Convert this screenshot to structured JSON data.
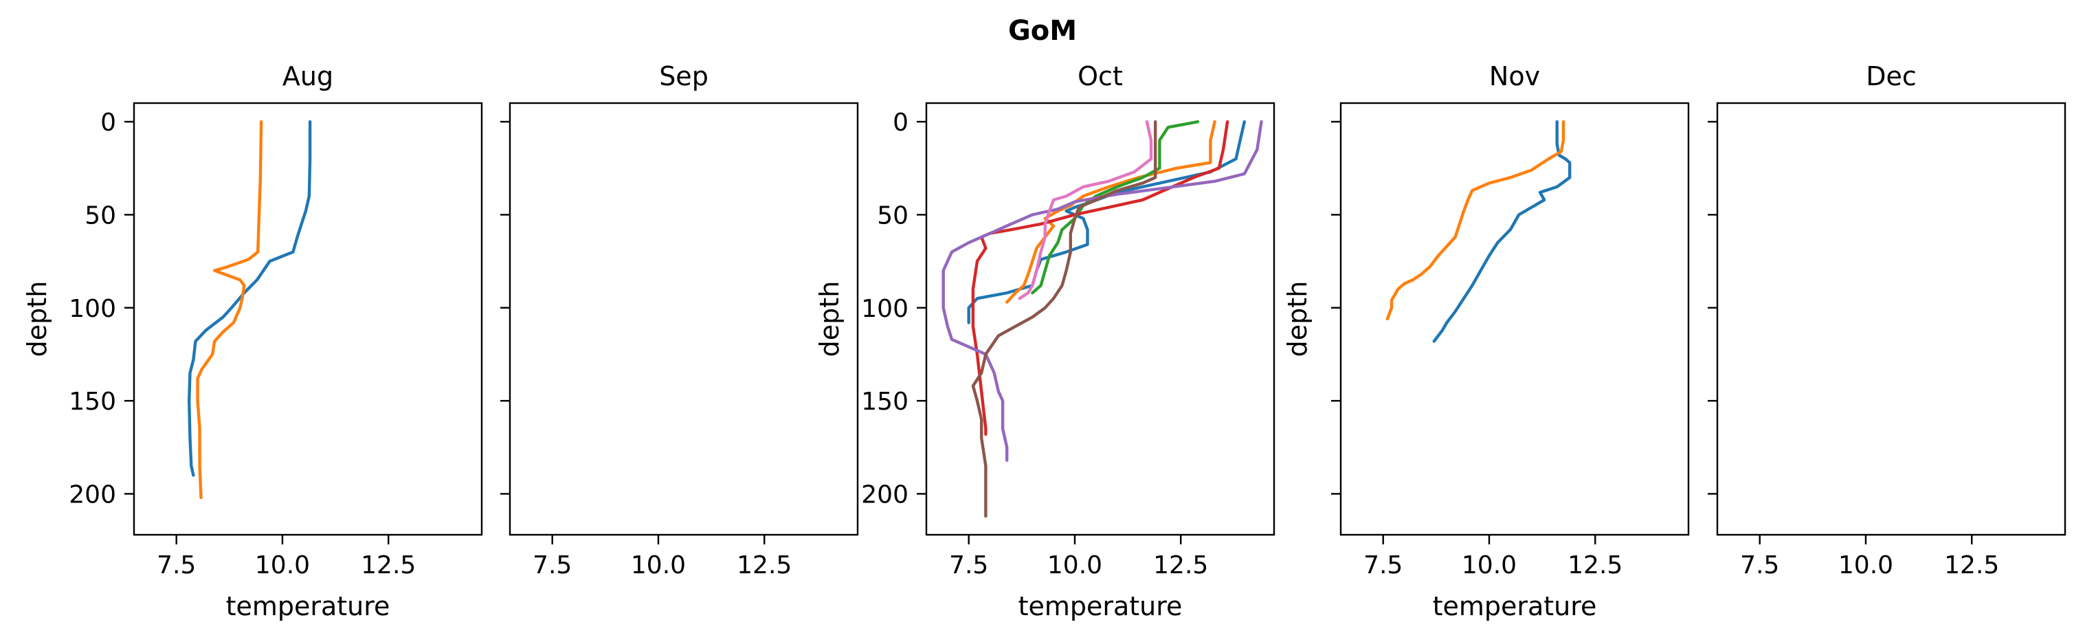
{
  "chart_data": {
    "title": "GoM",
    "type": "line",
    "xlim": [
      6.5,
      14.7
    ],
    "ylim": [
      222,
      -10
    ],
    "y_inverted": true,
    "x_ticks": [
      7.5,
      10.0,
      12.5
    ],
    "x_tick_labels": [
      "7.5",
      "10.0",
      "12.5"
    ],
    "y_ticks": [
      0,
      50,
      100,
      150,
      200
    ],
    "y_tick_labels": [
      "0",
      "50",
      "100",
      "150",
      "200"
    ],
    "xlabel": "temperature",
    "ylabel": "depth",
    "grid": false,
    "colors": [
      "#1f77b4",
      "#ff7f0e",
      "#2ca02c",
      "#d62728",
      "#9467bd",
      "#8c564b",
      "#e377c2"
    ],
    "panels": [
      {
        "title": "Aug",
        "show_xlabel": true,
        "show_ylabel": true,
        "show_ytick_labels": true,
        "series": [
          {
            "color": "#1f77b4",
            "points": [
              [
                10.65,
                0
              ],
              [
                10.65,
                20
              ],
              [
                10.63,
                40
              ],
              [
                10.55,
                48
              ],
              [
                10.45,
                55
              ],
              [
                10.35,
                62
              ],
              [
                10.25,
                70
              ],
              [
                9.7,
                75
              ],
              [
                9.4,
                85
              ],
              [
                9.1,
                92
              ],
              [
                8.8,
                100
              ],
              [
                8.6,
                105
              ],
              [
                8.2,
                112
              ],
              [
                7.95,
                118
              ],
              [
                7.9,
                128
              ],
              [
                7.82,
                135
              ],
              [
                7.8,
                150
              ],
              [
                7.82,
                170
              ],
              [
                7.85,
                185
              ],
              [
                7.9,
                190
              ]
            ]
          },
          {
            "color": "#ff7f0e",
            "points": [
              [
                9.5,
                0
              ],
              [
                9.48,
                30
              ],
              [
                9.45,
                50
              ],
              [
                9.42,
                70
              ],
              [
                9.2,
                74
              ],
              [
                8.7,
                78
              ],
              [
                8.4,
                80
              ],
              [
                9.0,
                85
              ],
              [
                9.1,
                88
              ],
              [
                9.05,
                95
              ],
              [
                9.0,
                100
              ],
              [
                8.85,
                108
              ],
              [
                8.6,
                113
              ],
              [
                8.4,
                118
              ],
              [
                8.35,
                125
              ],
              [
                8.1,
                133
              ],
              [
                8.0,
                138
              ],
              [
                8.0,
                150
              ],
              [
                8.05,
                165
              ],
              [
                8.05,
                185
              ],
              [
                8.08,
                202
              ]
            ]
          }
        ]
      },
      {
        "title": "Sep",
        "show_xlabel": false,
        "show_ylabel": false,
        "show_ytick_labels": false,
        "series": []
      },
      {
        "title": "Oct",
        "show_xlabel": true,
        "show_ylabel": true,
        "show_ytick_labels": true,
        "series": [
          {
            "color": "#1f77b4",
            "points": [
              [
                14.0,
                0
              ],
              [
                13.9,
                10
              ],
              [
                13.8,
                20
              ],
              [
                13.2,
                27
              ],
              [
                12.0,
                33
              ],
              [
                11.0,
                38
              ],
              [
                10.4,
                43
              ],
              [
                10.0,
                46
              ],
              [
                9.8,
                48
              ],
              [
                10.2,
                52
              ],
              [
                10.3,
                58
              ],
              [
                10.3,
                66
              ],
              [
                9.8,
                70
              ],
              [
                9.2,
                74
              ],
              [
                9.1,
                80
              ],
              [
                9.0,
                88
              ],
              [
                8.4,
                92
              ],
              [
                7.7,
                95
              ],
              [
                7.5,
                100
              ],
              [
                7.5,
                108
              ]
            ]
          },
          {
            "color": "#ff7f0e",
            "points": [
              [
                13.3,
                0
              ],
              [
                13.2,
                10
              ],
              [
                13.2,
                22
              ],
              [
                12.4,
                25
              ],
              [
                11.5,
                30
              ],
              [
                10.8,
                35
              ],
              [
                10.2,
                40
              ],
              [
                9.9,
                45
              ],
              [
                9.6,
                48
              ],
              [
                9.3,
                52
              ],
              [
                9.5,
                56
              ],
              [
                9.3,
                62
              ],
              [
                9.1,
                68
              ],
              [
                9.0,
                75
              ],
              [
                8.9,
                82
              ],
              [
                8.8,
                88
              ],
              [
                8.6,
                92
              ],
              [
                8.4,
                97
              ]
            ]
          },
          {
            "color": "#2ca02c",
            "points": [
              [
                12.9,
                0
              ],
              [
                12.2,
                3
              ],
              [
                12.0,
                10
              ],
              [
                12.0,
                25
              ],
              [
                11.6,
                30
              ],
              [
                11.0,
                35
              ],
              [
                10.5,
                40
              ],
              [
                10.2,
                45
              ],
              [
                10.0,
                52
              ],
              [
                9.7,
                58
              ],
              [
                9.6,
                65
              ],
              [
                9.4,
                72
              ],
              [
                9.3,
                80
              ],
              [
                9.2,
                88
              ],
              [
                9.0,
                92
              ]
            ]
          },
          {
            "color": "#d62728",
            "points": [
              [
                13.6,
                0
              ],
              [
                13.5,
                15
              ],
              [
                13.4,
                25
              ],
              [
                12.8,
                30
              ],
              [
                12.0,
                38
              ],
              [
                11.6,
                42
              ],
              [
                10.8,
                46
              ],
              [
                10.0,
                50
              ],
              [
                9.2,
                55
              ],
              [
                8.5,
                58
              ],
              [
                8.0,
                60
              ],
              [
                7.8,
                62
              ],
              [
                7.9,
                68
              ],
              [
                7.7,
                75
              ],
              [
                7.6,
                90
              ],
              [
                7.6,
                110
              ],
              [
                7.7,
                125
              ],
              [
                7.8,
                145
              ],
              [
                7.9,
                165
              ],
              [
                7.9,
                168
              ]
            ]
          },
          {
            "color": "#9467bd",
            "points": [
              [
                14.4,
                0
              ],
              [
                14.3,
                15
              ],
              [
                14.0,
                28
              ],
              [
                13.3,
                32
              ],
              [
                12.0,
                36
              ],
              [
                11.0,
                39
              ],
              [
                10.0,
                43
              ],
              [
                9.6,
                47
              ],
              [
                9.0,
                50
              ],
              [
                8.5,
                55
              ],
              [
                8.0,
                60
              ],
              [
                7.5,
                65
              ],
              [
                7.1,
                70
              ],
              [
                6.9,
                80
              ],
              [
                6.9,
                90
              ],
              [
                6.9,
                100
              ],
              [
                7.0,
                110
              ],
              [
                7.1,
                117
              ],
              [
                7.4,
                120
              ],
              [
                7.9,
                125
              ],
              [
                8.1,
                135
              ],
              [
                8.2,
                145
              ],
              [
                8.3,
                150
              ],
              [
                8.3,
                165
              ],
              [
                8.4,
                175
              ],
              [
                8.4,
                182
              ]
            ]
          },
          {
            "color": "#8c564b",
            "points": [
              [
                11.9,
                0
              ],
              [
                11.9,
                20
              ],
              [
                11.9,
                30
              ],
              [
                11.6,
                33
              ],
              [
                11.0,
                37
              ],
              [
                10.5,
                42
              ],
              [
                10.1,
                46
              ],
              [
                10.0,
                52
              ],
              [
                9.9,
                60
              ],
              [
                9.9,
                70
              ],
              [
                9.8,
                80
              ],
              [
                9.7,
                88
              ],
              [
                9.5,
                95
              ],
              [
                9.3,
                100
              ],
              [
                9.0,
                105
              ],
              [
                8.6,
                110
              ],
              [
                8.2,
                115
              ],
              [
                7.9,
                125
              ],
              [
                7.8,
                135
              ],
              [
                7.6,
                142
              ],
              [
                7.7,
                150
              ],
              [
                7.8,
                160
              ],
              [
                7.8,
                170
              ],
              [
                7.9,
                185
              ],
              [
                7.9,
                200
              ],
              [
                7.9,
                212
              ]
            ]
          },
          {
            "color": "#e377c2",
            "points": [
              [
                11.7,
                0
              ],
              [
                11.8,
                10
              ],
              [
                11.8,
                20
              ],
              [
                11.4,
                27
              ],
              [
                10.8,
                32
              ],
              [
                10.2,
                35
              ],
              [
                9.8,
                40
              ],
              [
                9.5,
                42
              ],
              [
                9.4,
                48
              ],
              [
                9.3,
                55
              ],
              [
                9.3,
                62
              ],
              [
                9.2,
                70
              ],
              [
                9.1,
                80
              ],
              [
                9.0,
                88
              ],
              [
                8.9,
                92
              ],
              [
                8.7,
                95
              ]
            ]
          }
        ]
      },
      {
        "title": "Nov",
        "show_xlabel": true,
        "show_ylabel": true,
        "show_ytick_labels": false,
        "series": [
          {
            "color": "#1f77b4",
            "points": [
              [
                11.6,
                0
              ],
              [
                11.6,
                12
              ],
              [
                11.65,
                18
              ],
              [
                11.8,
                20
              ],
              [
                11.9,
                22
              ],
              [
                11.9,
                30
              ],
              [
                11.6,
                35
              ],
              [
                11.2,
                38
              ],
              [
                11.3,
                42
              ],
              [
                11.0,
                46
              ],
              [
                10.7,
                50
              ],
              [
                10.5,
                58
              ],
              [
                10.2,
                65
              ],
              [
                10.0,
                72
              ],
              [
                9.8,
                80
              ],
              [
                9.6,
                88
              ],
              [
                9.4,
                95
              ],
              [
                9.2,
                102
              ],
              [
                9.0,
                108
              ],
              [
                8.9,
                112
              ],
              [
                8.8,
                115
              ],
              [
                8.7,
                118
              ]
            ]
          },
          {
            "color": "#ff7f0e",
            "points": [
              [
                11.75,
                0
              ],
              [
                11.75,
                10
              ],
              [
                11.7,
                16
              ],
              [
                11.4,
                20
              ],
              [
                11.0,
                26
              ],
              [
                10.5,
                30
              ],
              [
                10.0,
                33
              ],
              [
                9.6,
                37
              ],
              [
                9.5,
                42
              ],
              [
                9.4,
                48
              ],
              [
                9.3,
                55
              ],
              [
                9.2,
                62
              ],
              [
                9.0,
                67
              ],
              [
                8.8,
                72
              ],
              [
                8.6,
                78
              ],
              [
                8.4,
                82
              ],
              [
                8.2,
                85
              ],
              [
                8.0,
                87
              ],
              [
                7.85,
                90
              ],
              [
                7.7,
                96
              ],
              [
                7.7,
                100
              ],
              [
                7.6,
                106
              ]
            ]
          }
        ]
      },
      {
        "title": "Dec",
        "show_xlabel": false,
        "show_ylabel": false,
        "show_ytick_labels": false,
        "series": []
      }
    ]
  }
}
